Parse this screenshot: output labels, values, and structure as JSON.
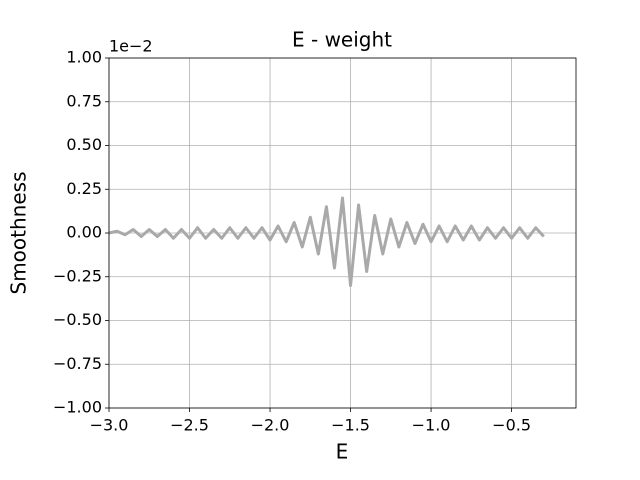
{
  "chart_data": {
    "type": "line",
    "title": "E - weight",
    "xlabel": "E",
    "ylabel": "Smoothness",
    "y_offset_text": "1e−2",
    "x": [
      -3.0,
      -2.95,
      -2.9,
      -2.85,
      -2.8,
      -2.75,
      -2.7,
      -2.65,
      -2.6,
      -2.55,
      -2.5,
      -2.45,
      -2.4,
      -2.35,
      -2.3,
      -2.25,
      -2.2,
      -2.15,
      -2.1,
      -2.05,
      -2.0,
      -1.95,
      -1.9,
      -1.85,
      -1.8,
      -1.75,
      -1.7,
      -1.65,
      -1.6,
      -1.55,
      -1.5,
      -1.45,
      -1.4,
      -1.35,
      -1.3,
      -1.25,
      -1.2,
      -1.15,
      -1.1,
      -1.05,
      -1.0,
      -0.95,
      -0.9,
      -0.85,
      -0.8,
      -0.75,
      -0.7,
      -0.65,
      -0.6,
      -0.55,
      -0.5,
      -0.45,
      -0.4,
      -0.35,
      -0.3
    ],
    "values": [
      0.0,
      0.01,
      -0.01,
      0.02,
      -0.02,
      0.02,
      -0.02,
      0.02,
      -0.03,
      0.02,
      -0.03,
      0.03,
      -0.03,
      0.02,
      -0.03,
      0.03,
      -0.03,
      0.03,
      -0.03,
      0.03,
      -0.04,
      0.04,
      -0.05,
      0.06,
      -0.08,
      0.09,
      -0.12,
      0.15,
      -0.2,
      0.2,
      -0.3,
      0.16,
      -0.22,
      0.1,
      -0.12,
      0.08,
      -0.08,
      0.06,
      -0.06,
      0.05,
      -0.05,
      0.04,
      -0.05,
      0.04,
      -0.04,
      0.04,
      -0.04,
      0.03,
      -0.03,
      0.03,
      -0.03,
      0.03,
      -0.03,
      0.03,
      -0.02
    ],
    "color": "#a9a9a9",
    "xlim": [
      -3.0,
      -0.1
    ],
    "xticks": [
      {
        "value": -3.0,
        "label": "−3.0"
      },
      {
        "value": -2.5,
        "label": "−2.5"
      },
      {
        "value": -2.0,
        "label": "−2.0"
      },
      {
        "value": -1.5,
        "label": "−1.5"
      },
      {
        "value": -1.0,
        "label": "−1.0"
      },
      {
        "value": -0.5,
        "label": "−0.5"
      }
    ],
    "ylim": [
      -1.0,
      1.0
    ],
    "yticks": [
      {
        "value": -1.0,
        "label": "−1.00"
      },
      {
        "value": -0.75,
        "label": "−0.75"
      },
      {
        "value": -0.5,
        "label": "−0.50"
      },
      {
        "value": -0.25,
        "label": "−0.25"
      },
      {
        "value": 0,
        "label": "0.00"
      },
      {
        "value": 0.25,
        "label": "0.25"
      },
      {
        "value": 0.5,
        "label": "0.50"
      },
      {
        "value": 0.75,
        "label": "0.75"
      },
      {
        "value": 1.0,
        "label": "1.00"
      }
    ],
    "grid": true
  }
}
